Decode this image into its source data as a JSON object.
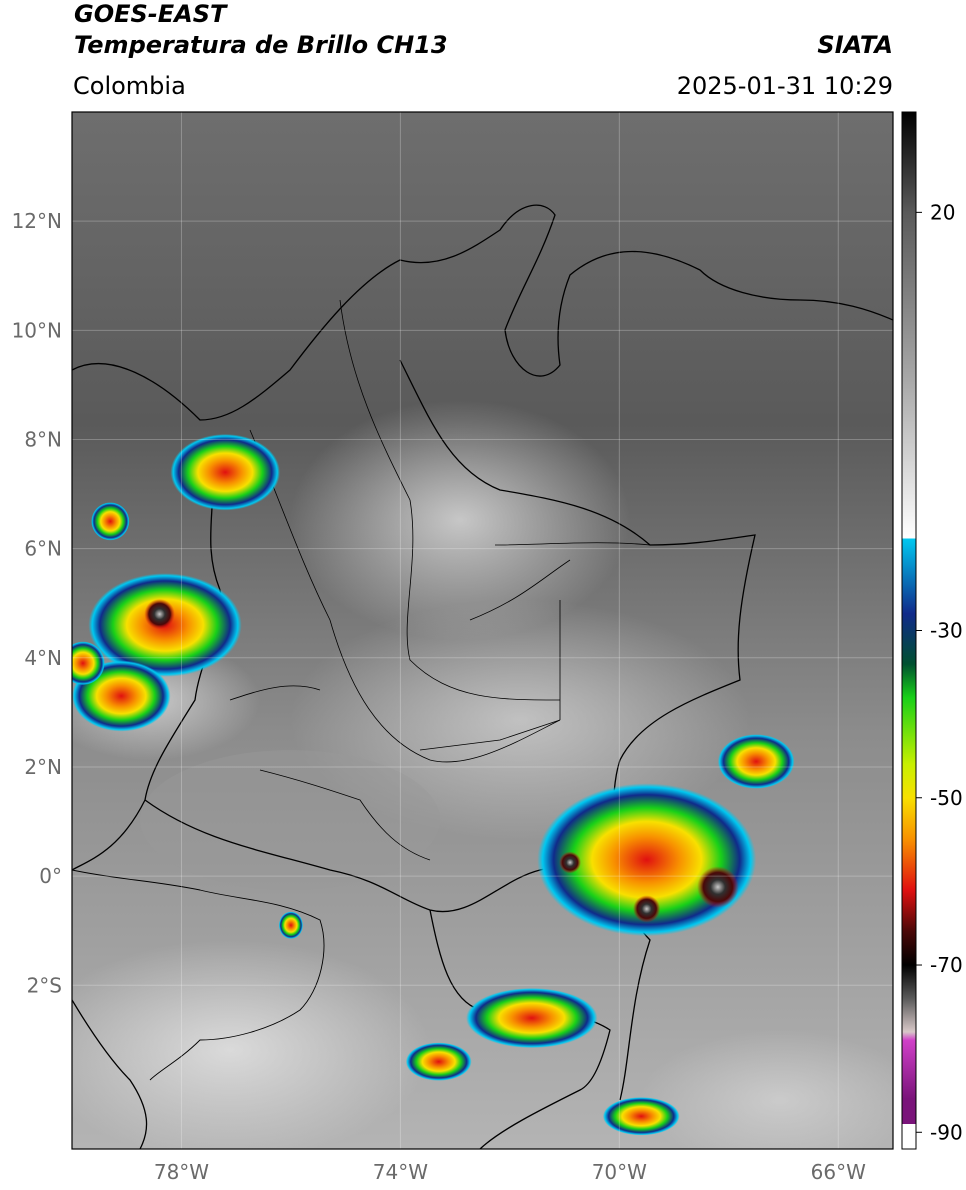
{
  "header": {
    "satellite": "GOES-EAST",
    "product": "Temperatura de Brillo CH13",
    "brand": "SIATA",
    "region": "Colombia",
    "timestamp": "2025-01-31 10:29"
  },
  "map": {
    "lon_range": [
      -80,
      -65
    ],
    "lat_range": [
      -5,
      14
    ],
    "lat_ticks": [
      "12°N",
      "10°N",
      "8°N",
      "6°N",
      "4°N",
      "2°N",
      "0°",
      "2°S"
    ],
    "lon_ticks": [
      "78°W",
      "74°W",
      "70°W",
      "66°W"
    ],
    "gridlines": true,
    "convective_cells": [
      {
        "lon": -77.2,
        "lat": 7.4,
        "rx": 1.0,
        "ry": 0.7
      },
      {
        "lon": -79.3,
        "lat": 6.5,
        "rx": 0.35,
        "ry": 0.35
      },
      {
        "lon": -78.3,
        "lat": 4.6,
        "rx": 1.4,
        "ry": 0.95
      },
      {
        "lon": -79.1,
        "lat": 3.3,
        "rx": 0.9,
        "ry": 0.65
      },
      {
        "lon": -79.8,
        "lat": 3.9,
        "rx": 0.4,
        "ry": 0.4
      },
      {
        "lon": -69.5,
        "lat": 0.3,
        "rx": 2.0,
        "ry": 1.4
      },
      {
        "lon": -67.5,
        "lat": 2.1,
        "rx": 0.7,
        "ry": 0.5
      },
      {
        "lon": -71.6,
        "lat": -2.6,
        "rx": 1.2,
        "ry": 0.55
      },
      {
        "lon": -73.3,
        "lat": -3.4,
        "rx": 0.6,
        "ry": 0.35
      },
      {
        "lon": -69.6,
        "lat": -4.4,
        "rx": 0.7,
        "ry": 0.35
      },
      {
        "lon": -76.0,
        "lat": -0.9,
        "rx": 0.22,
        "ry": 0.25
      }
    ],
    "cold_cores": [
      {
        "lon": -78.4,
        "lat": 4.8,
        "r": 0.28
      },
      {
        "lon": -68.2,
        "lat": -0.2,
        "r": 0.38
      },
      {
        "lon": -69.5,
        "lat": -0.6,
        "r": 0.25
      },
      {
        "lon": -70.9,
        "lat": 0.25,
        "r": 0.2
      }
    ]
  },
  "colorbar": {
    "range": [
      -92,
      32
    ],
    "ticks": [
      {
        "value": 20,
        "label": "20"
      },
      {
        "value": -30,
        "label": "-30"
      },
      {
        "value": -50,
        "label": "-50"
      },
      {
        "value": -70,
        "label": "-70"
      },
      {
        "value": -90,
        "label": "-90"
      }
    ],
    "colors": {
      "warm": "#3c3c3c",
      "cyan": "#00c8f0",
      "navy": "#102a8a",
      "green": "#18d018",
      "yellow": "#f8e000",
      "orange": "#f89000",
      "red": "#e01010",
      "maroon": "#4a0808",
      "magenta": "#d040c8",
      "purple": "#7a147a"
    }
  }
}
